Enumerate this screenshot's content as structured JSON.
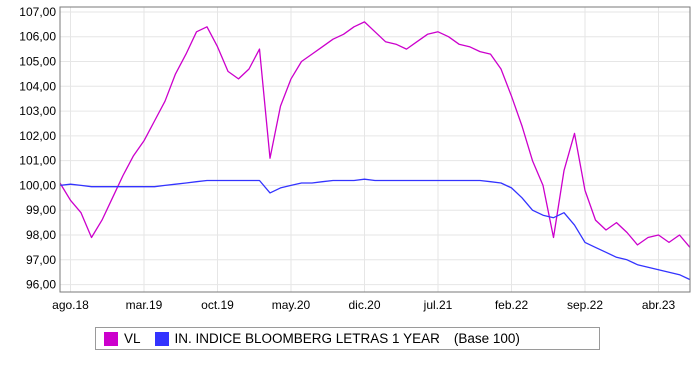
{
  "chart_data": {
    "type": "line",
    "title": "",
    "xlabel": "",
    "ylabel": "",
    "x_tick_labels": [
      "ago.18",
      "mar.19",
      "oct.19",
      "may.20",
      "dic.20",
      "jul.21",
      "feb.22",
      "sep.22",
      "abr.23"
    ],
    "y_tick_labels": [
      "96,00",
      "97,00",
      "98,00",
      "99,00",
      "100,00",
      "101,00",
      "102,00",
      "103,00",
      "104,00",
      "105,00",
      "106,00",
      "107,00"
    ],
    "ylim": [
      95.7,
      107.2
    ],
    "xlim": [
      "2018-07",
      "2023-07"
    ],
    "grid": true,
    "legend_position": "bottom",
    "base_note": "(Base 100)",
    "series": [
      {
        "name": "VL",
        "color": "#cc00cc",
        "x": [
          "2018-07",
          "2018-08",
          "2018-09",
          "2018-10",
          "2018-11",
          "2018-12",
          "2019-01",
          "2019-02",
          "2019-03",
          "2019-04",
          "2019-05",
          "2019-06",
          "2019-07",
          "2019-08",
          "2019-09",
          "2019-10",
          "2019-11",
          "2019-12",
          "2020-01",
          "2020-02",
          "2020-03",
          "2020-04",
          "2020-05",
          "2020-06",
          "2020-07",
          "2020-08",
          "2020-09",
          "2020-10",
          "2020-11",
          "2020-12",
          "2021-01",
          "2021-02",
          "2021-03",
          "2021-04",
          "2021-05",
          "2021-06",
          "2021-07",
          "2021-08",
          "2021-09",
          "2021-10",
          "2021-11",
          "2021-12",
          "2022-01",
          "2022-02",
          "2022-03",
          "2022-04",
          "2022-05",
          "2022-06",
          "2022-07",
          "2022-08",
          "2022-09",
          "2022-10",
          "2022-11",
          "2022-12",
          "2023-01",
          "2023-02",
          "2023-03",
          "2023-04",
          "2023-05",
          "2023-06",
          "2023-07"
        ],
        "values": [
          100.1,
          99.4,
          98.9,
          97.9,
          98.6,
          99.5,
          100.4,
          101.2,
          101.8,
          102.6,
          103.4,
          104.5,
          105.3,
          106.2,
          106.4,
          105.6,
          104.6,
          104.3,
          104.7,
          105.5,
          101.1,
          103.2,
          104.3,
          105.0,
          105.3,
          105.6,
          105.9,
          106.1,
          106.4,
          106.6,
          106.2,
          105.8,
          105.7,
          105.5,
          105.8,
          106.1,
          106.2,
          106.0,
          105.7,
          105.6,
          105.4,
          105.3,
          104.7,
          103.6,
          102.4,
          101.0,
          100.0,
          97.9,
          100.6,
          102.1,
          99.8,
          98.6,
          98.2,
          98.5,
          98.1,
          97.6,
          97.9,
          98.0,
          97.7,
          98.0,
          97.5
        ]
      },
      {
        "name": "IN. INDICE BLOOMBERG LETRAS 1 YEAR",
        "color": "#3333ff",
        "x": [
          "2018-07",
          "2018-08",
          "2018-09",
          "2018-10",
          "2018-11",
          "2018-12",
          "2019-01",
          "2019-02",
          "2019-03",
          "2019-04",
          "2019-05",
          "2019-06",
          "2019-07",
          "2019-08",
          "2019-09",
          "2019-10",
          "2019-11",
          "2019-12",
          "2020-01",
          "2020-02",
          "2020-03",
          "2020-04",
          "2020-05",
          "2020-06",
          "2020-07",
          "2020-08",
          "2020-09",
          "2020-10",
          "2020-11",
          "2020-12",
          "2021-01",
          "2021-02",
          "2021-03",
          "2021-04",
          "2021-05",
          "2021-06",
          "2021-07",
          "2021-08",
          "2021-09",
          "2021-10",
          "2021-11",
          "2021-12",
          "2022-01",
          "2022-02",
          "2022-03",
          "2022-04",
          "2022-05",
          "2022-06",
          "2022-07",
          "2022-08",
          "2022-09",
          "2022-10",
          "2022-11",
          "2022-12",
          "2023-01",
          "2023-02",
          "2023-03",
          "2023-04",
          "2023-05",
          "2023-06",
          "2023-07"
        ],
        "values": [
          100.0,
          100.05,
          100.0,
          99.95,
          99.95,
          99.95,
          99.95,
          99.95,
          99.95,
          99.95,
          100.0,
          100.05,
          100.1,
          100.15,
          100.2,
          100.2,
          100.2,
          100.2,
          100.2,
          100.2,
          99.7,
          99.9,
          100.0,
          100.1,
          100.1,
          100.15,
          100.2,
          100.2,
          100.2,
          100.25,
          100.2,
          100.2,
          100.2,
          100.2,
          100.2,
          100.2,
          100.2,
          100.2,
          100.2,
          100.2,
          100.2,
          100.15,
          100.1,
          99.9,
          99.5,
          99.0,
          98.8,
          98.7,
          98.9,
          98.4,
          97.7,
          97.5,
          97.3,
          97.1,
          97.0,
          96.8,
          96.7,
          96.6,
          96.5,
          96.4,
          96.2
        ]
      }
    ]
  }
}
